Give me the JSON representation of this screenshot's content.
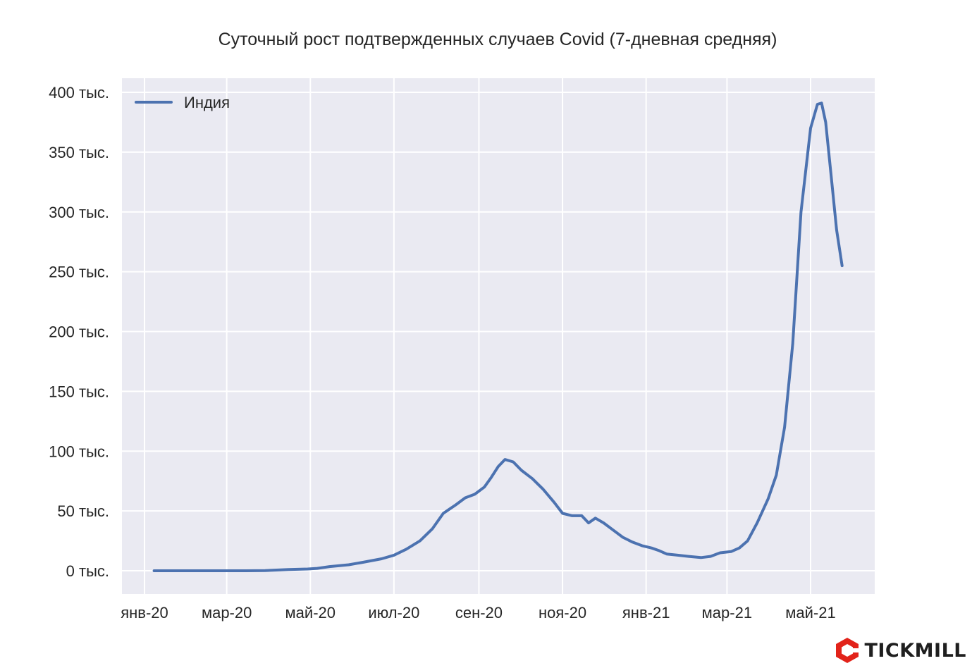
{
  "chart_data": {
    "type": "line",
    "title": "Суточный рост подтвержденных случаев Covid (7-дневная средняя)",
    "xlabel": "",
    "ylabel": "",
    "ylim": [
      -20000,
      400000
    ],
    "x_ticks": [
      "янв-20",
      "мар-20",
      "май-20",
      "июл-20",
      "сен-20",
      "ноя-20",
      "янв-21",
      "мар-21",
      "май-21"
    ],
    "y_ticks": [
      {
        "value": 0,
        "label": "0 тыс."
      },
      {
        "value": 50000,
        "label": "50 тыс."
      },
      {
        "value": 100000,
        "label": "100 тыс."
      },
      {
        "value": 150000,
        "label": "150 тыс."
      },
      {
        "value": 200000,
        "label": "200 тыс."
      },
      {
        "value": 250000,
        "label": "250 тыс."
      },
      {
        "value": 300000,
        "label": "300 тыс."
      },
      {
        "value": 350000,
        "label": "350 тыс."
      },
      {
        "value": 400000,
        "label": "400 тыс."
      }
    ],
    "grid": true,
    "legend_position": "top-left",
    "series": [
      {
        "name": "Индия",
        "color": "#4c72b0",
        "points": [
          [
            "2020-01-08",
            0
          ],
          [
            "2020-02-15",
            0
          ],
          [
            "2020-03-15",
            0
          ],
          [
            "2020-03-29",
            200
          ],
          [
            "2020-04-15",
            1000
          ],
          [
            "2020-04-29",
            1500
          ],
          [
            "2020-05-06",
            2000
          ],
          [
            "2020-05-15",
            3500
          ],
          [
            "2020-05-29",
            5000
          ],
          [
            "2020-06-08",
            7000
          ],
          [
            "2020-06-22",
            10000
          ],
          [
            "2020-07-01",
            13000
          ],
          [
            "2020-07-10",
            18000
          ],
          [
            "2020-07-20",
            25000
          ],
          [
            "2020-07-29",
            35000
          ],
          [
            "2020-08-06",
            48000
          ],
          [
            "2020-08-15",
            55000
          ],
          [
            "2020-08-22",
            61000
          ],
          [
            "2020-08-29",
            64000
          ],
          [
            "2020-09-05",
            70000
          ],
          [
            "2020-09-10",
            78000
          ],
          [
            "2020-09-15",
            87000
          ],
          [
            "2020-09-20",
            93000
          ],
          [
            "2020-09-26",
            91000
          ],
          [
            "2020-10-02",
            84000
          ],
          [
            "2020-10-10",
            77000
          ],
          [
            "2020-10-18",
            68000
          ],
          [
            "2020-10-26",
            57000
          ],
          [
            "2020-11-01",
            48000
          ],
          [
            "2020-11-08",
            46000
          ],
          [
            "2020-11-15",
            46000
          ],
          [
            "2020-11-20",
            40000
          ],
          [
            "2020-11-25",
            44000
          ],
          [
            "2020-12-01",
            40000
          ],
          [
            "2020-12-08",
            34000
          ],
          [
            "2020-12-15",
            28000
          ],
          [
            "2020-12-22",
            24000
          ],
          [
            "2020-12-29",
            21000
          ],
          [
            "2021-01-05",
            19000
          ],
          [
            "2021-01-10",
            17000
          ],
          [
            "2021-01-16",
            14000
          ],
          [
            "2021-01-24",
            13000
          ],
          [
            "2021-02-01",
            12000
          ],
          [
            "2021-02-10",
            11000
          ],
          [
            "2021-02-17",
            12000
          ],
          [
            "2021-02-24",
            15000
          ],
          [
            "2021-03-04",
            16000
          ],
          [
            "2021-03-10",
            19000
          ],
          [
            "2021-03-16",
            25000
          ],
          [
            "2021-03-23",
            40000
          ],
          [
            "2021-03-31",
            60000
          ],
          [
            "2021-04-06",
            80000
          ],
          [
            "2021-04-12",
            120000
          ],
          [
            "2021-04-18",
            190000
          ],
          [
            "2021-04-24",
            300000
          ],
          [
            "2021-05-01",
            370000
          ],
          [
            "2021-05-06",
            390000
          ],
          [
            "2021-05-09",
            391000
          ],
          [
            "2021-05-12",
            375000
          ],
          [
            "2021-05-16",
            330000
          ],
          [
            "2021-05-20",
            285000
          ],
          [
            "2021-05-24",
            255000
          ]
        ]
      }
    ]
  },
  "brand": {
    "name": "TICKMILL",
    "logo_color": "#e2231a"
  }
}
